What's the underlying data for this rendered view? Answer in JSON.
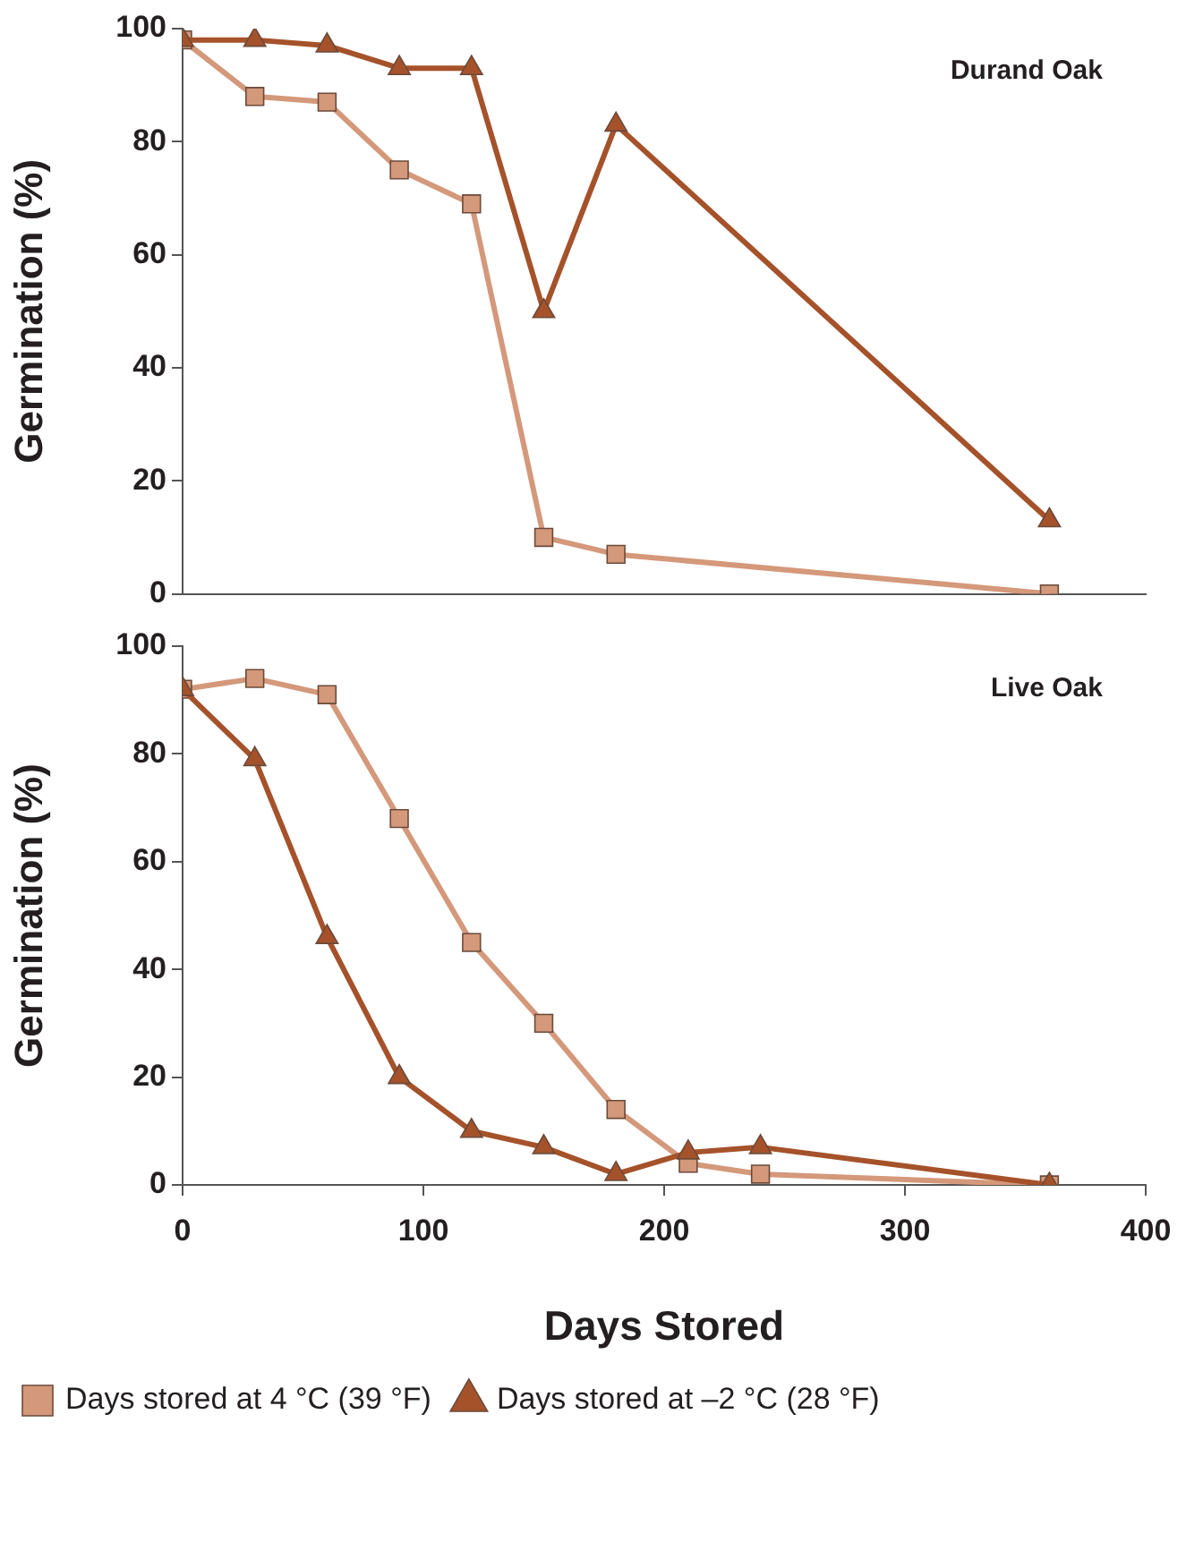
{
  "chart_data": [
    {
      "type": "line",
      "ylabel": "Germination (%)",
      "annotations": [
        "Durand Oak"
      ],
      "xlim": [
        0,
        400
      ],
      "xticks": [
        0,
        100,
        200,
        300,
        400
      ],
      "ylim": [
        0,
        100
      ],
      "yticks": [
        0,
        20,
        40,
        60,
        80,
        100
      ],
      "tick_labels": "y",
      "grid": false,
      "legend": false,
      "line_style": "solid",
      "series": [
        {
          "color": "#d4987a",
          "marker": "square",
          "x": [
            0,
            30,
            60,
            90,
            120,
            150,
            180,
            360
          ],
          "values": [
            98,
            88,
            87,
            75,
            69,
            10,
            7,
            0
          ]
        },
        {
          "color": "#a5522a",
          "marker": "triangle",
          "x": [
            0,
            30,
            60,
            90,
            120,
            150,
            180,
            360
          ],
          "values": [
            98,
            98,
            97,
            93,
            93,
            50,
            83,
            13
          ]
        }
      ]
    },
    {
      "type": "line",
      "ylabel": "Germination (%)",
      "xlabel": "Days Stored",
      "annotations": [
        "Live Oak"
      ],
      "xlim": [
        0,
        400
      ],
      "xticks": [
        0,
        100,
        200,
        300,
        400
      ],
      "ylim": [
        0,
        100
      ],
      "yticks": [
        0,
        20,
        40,
        60,
        80,
        100
      ],
      "grid": false,
      "legend": "bottom",
      "line_style": "solid",
      "series": [
        {
          "name": "Days stored at 4 °C (39 °F)",
          "color": "#d4987a",
          "marker": "square",
          "x": [
            0,
            30,
            60,
            90,
            120,
            150,
            180,
            210,
            240,
            360
          ],
          "values": [
            92,
            94,
            91,
            68,
            45,
            30,
            14,
            4,
            2,
            0
          ]
        },
        {
          "name": "Days stored at –2 °C (28 °F)",
          "color": "#a5522a",
          "marker": "triangle",
          "x": [
            0,
            30,
            60,
            90,
            120,
            150,
            180,
            210,
            240,
            360
          ],
          "values": [
            92,
            79,
            46,
            20,
            10,
            7,
            2,
            6,
            7,
            0
          ]
        }
      ]
    }
  ]
}
